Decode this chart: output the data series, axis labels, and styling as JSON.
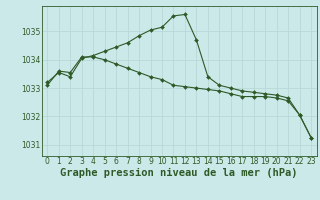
{
  "title": "Graphe pression niveau de la mer (hPa)",
  "background_color": "#cce9e9",
  "grid_color": "#b8d8d8",
  "line_color": "#2d5a27",
  "xlim": [
    -0.5,
    23.5
  ],
  "ylim": [
    1030.6,
    1035.9
  ],
  "yticks": [
    1031,
    1032,
    1033,
    1034,
    1035
  ],
  "xticks": [
    0,
    1,
    2,
    3,
    4,
    5,
    6,
    7,
    8,
    9,
    10,
    11,
    12,
    13,
    14,
    15,
    16,
    17,
    18,
    19,
    20,
    21,
    22,
    23
  ],
  "curve1_x": [
    0,
    1,
    2,
    3,
    4,
    5,
    6,
    7,
    8,
    9,
    10,
    11,
    12,
    13,
    14,
    15,
    16,
    17,
    18,
    19,
    20,
    21,
    22,
    23
  ],
  "curve1_y": [
    1033.2,
    1033.55,
    1033.4,
    1034.05,
    1034.15,
    1034.3,
    1034.45,
    1034.6,
    1034.85,
    1035.05,
    1035.15,
    1035.55,
    1035.6,
    1034.7,
    1033.4,
    1033.1,
    1033.0,
    1032.9,
    1032.85,
    1032.8,
    1032.75,
    1032.65,
    1032.05,
    1031.25
  ],
  "curve2_x": [
    0,
    1,
    2,
    3,
    4,
    5,
    6,
    7,
    8,
    9,
    10,
    11,
    12,
    13,
    14,
    15,
    16,
    17,
    18,
    19,
    20,
    21,
    22,
    23
  ],
  "curve2_y": [
    1033.1,
    1033.6,
    1033.55,
    1034.1,
    1034.1,
    1034.0,
    1033.85,
    1033.7,
    1033.55,
    1033.4,
    1033.3,
    1033.1,
    1033.05,
    1033.0,
    1032.95,
    1032.9,
    1032.8,
    1032.7,
    1032.7,
    1032.7,
    1032.65,
    1032.55,
    1032.05,
    1031.25
  ],
  "marker": "D",
  "markersize": 2.0,
  "linewidth": 0.8,
  "title_fontsize": 7.5,
  "tick_fontsize": 5.5
}
